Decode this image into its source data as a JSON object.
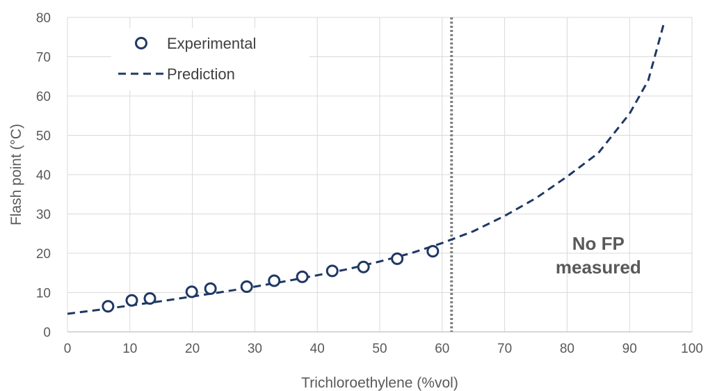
{
  "chart_data": {
    "type": "scatter",
    "title": "",
    "xlabel": "Trichloroethylene (%vol)",
    "ylabel": "Flash point (°C)",
    "xlim": [
      0,
      100
    ],
    "ylim": [
      0,
      80
    ],
    "xticks": [
      0,
      10,
      20,
      30,
      40,
      50,
      60,
      70,
      80,
      90,
      100
    ],
    "yticks": [
      0,
      10,
      20,
      30,
      40,
      50,
      60,
      70,
      80
    ],
    "grid": true,
    "legend_position": "top-left",
    "series": [
      {
        "name": "Experimental",
        "style": "open-circle",
        "color": "#1f3864",
        "x": [
          6.5,
          10.3,
          13.2,
          19.9,
          22.9,
          28.7,
          33.1,
          37.6,
          42.4,
          47.4,
          52.8,
          58.5
        ],
        "y": [
          6.5,
          8.0,
          8.5,
          10.2,
          11.0,
          11.5,
          13.0,
          14.0,
          15.5,
          16.5,
          18.6,
          20.5
        ]
      },
      {
        "name": "Prediction",
        "style": "dashed-line",
        "color": "#1f3864",
        "x": [
          0,
          5,
          10,
          15,
          20,
          25,
          30,
          35,
          40,
          45,
          50,
          55,
          60,
          65,
          70,
          75,
          80,
          85,
          90,
          93,
          95.5
        ],
        "y": [
          4.6,
          5.6,
          6.7,
          7.8,
          9.0,
          10.2,
          11.5,
          12.9,
          14.4,
          16.0,
          17.9,
          20.0,
          22.6,
          25.6,
          29.5,
          34.0,
          39.5,
          45.5,
          55.5,
          64.0,
          78.5
        ]
      }
    ],
    "reference_line": {
      "x": 61.5,
      "style": "dotted",
      "color": "#808080"
    },
    "annotations": [
      {
        "text_lines": [
          "No FP",
          "measured"
        ],
        "x": 85,
        "y": 19.5
      }
    ]
  }
}
